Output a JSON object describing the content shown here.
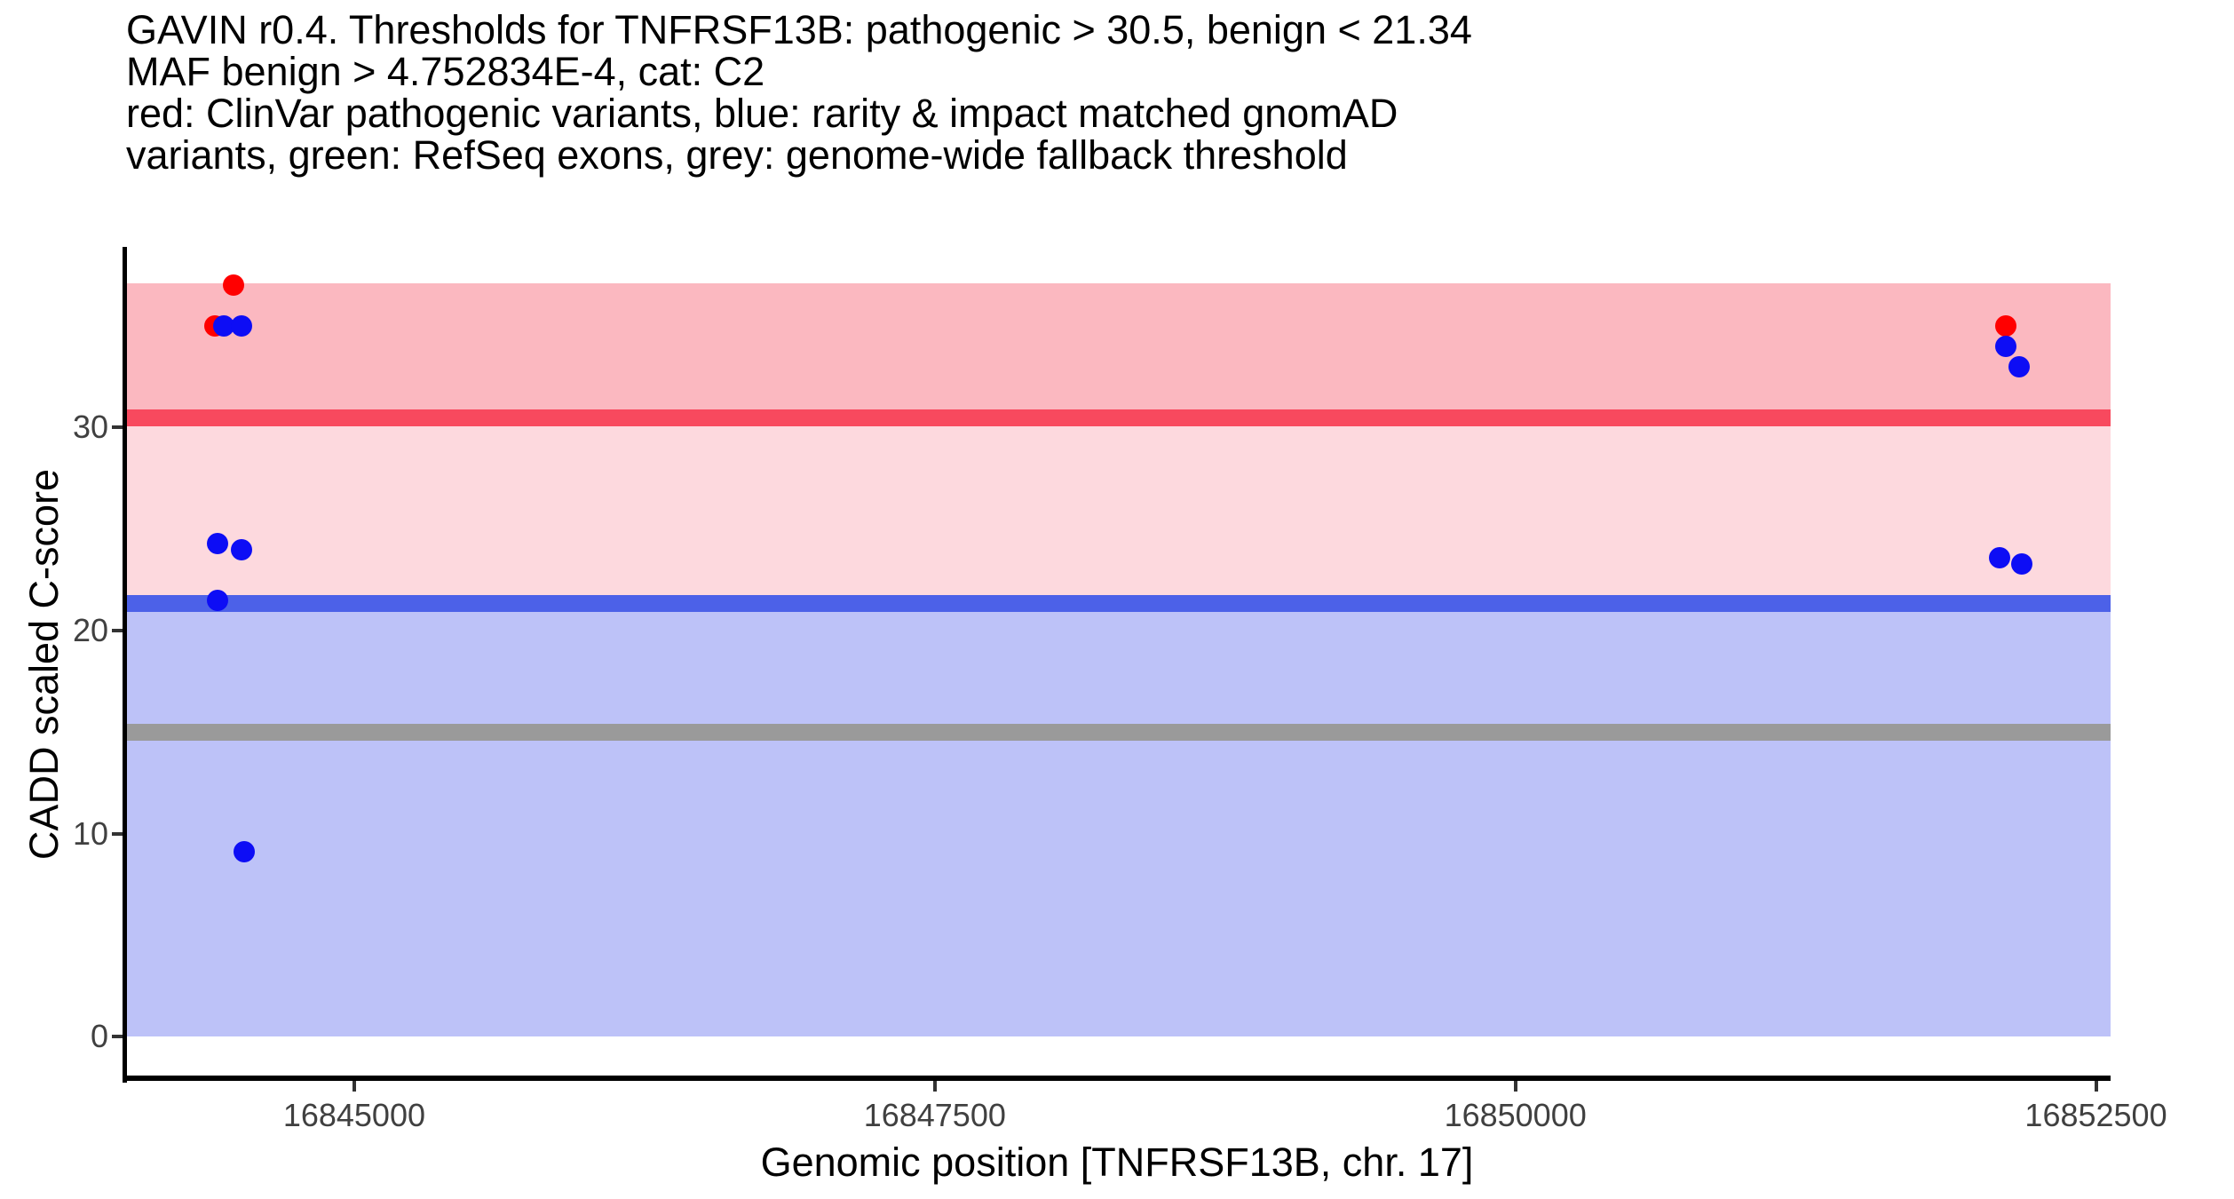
{
  "title": {
    "lines": [
      "GAVIN r0.4. Thresholds for TNFRSF13B: pathogenic > 30.5, benign < 21.34",
      "MAF benign > 4.752834E-4, cat: C2",
      "red: ClinVar pathogenic variants, blue: rarity & impact matched gnomAD",
      "variants, green: RefSeq exons, grey: genome-wide fallback threshold"
    ]
  },
  "chart_data": {
    "type": "scatter",
    "title": "GAVIN r0.4. Thresholds for TNFRSF13B: pathogenic > 30.5, benign < 21.34 MAF benign > 4.752834E-4, cat: C2",
    "subtitle": "red: ClinVar pathogenic variants, blue: rarity & impact matched gnomAD variants, green: RefSeq exons, grey: genome-wide fallback threshold",
    "xlabel": "Genomic position [TNFRSF13B, chr. 17]",
    "ylabel": "CADD scaled C-score",
    "gene": "TNFRSF13B",
    "chromosome": "17",
    "gavin_version": "r0.4",
    "category": "C2",
    "maf_benign": "4.752834E-4",
    "xlim": [
      16844010,
      16852563
    ],
    "ylim": [
      -2,
      38.9
    ],
    "grid": false,
    "legend_position": "none",
    "x_axis": {
      "ticks": [
        {
          "value": 16845000,
          "label": "16845000"
        },
        {
          "value": 16847500,
          "label": "16847500"
        },
        {
          "value": 16850000,
          "label": "16850000"
        },
        {
          "value": 16852500,
          "label": "16852500"
        }
      ]
    },
    "y_axis": {
      "ticks": [
        {
          "value": 0,
          "label": "0"
        },
        {
          "value": 10,
          "label": "10"
        },
        {
          "value": 20,
          "label": "20"
        },
        {
          "value": 30,
          "label": "30"
        }
      ]
    },
    "bands": [
      {
        "name": "pathogenic-zone-band",
        "from": 30.5,
        "to": 37.1,
        "color": "#fbb8c0"
      },
      {
        "name": "intermediate-zone-band",
        "from": 21.34,
        "to": 30.5,
        "color": "#fdd9de"
      },
      {
        "name": "benign-zone-band",
        "from": 0,
        "to": 21.34,
        "color": "#bdc2f8"
      }
    ],
    "thresholds": [
      {
        "name": "pathogenic-threshold-line",
        "label": "pathogenic > 30.5",
        "value": 30.5,
        "color": "#f8495e"
      },
      {
        "name": "benign-threshold-line",
        "label": "benign < 21.34",
        "value": 21.34,
        "color": "#4c61e8"
      },
      {
        "name": "genome-wide-fallback-threshold-line",
        "label": "genome-wide fallback threshold",
        "value": 15,
        "color": "#9a9a9a"
      }
    ],
    "series": [
      {
        "name": "ClinVar pathogenic variants",
        "color": "#ff0000",
        "points": [
          {
            "x": 16844480,
            "y": 37.0
          },
          {
            "x": 16844400,
            "y": 35.0
          },
          {
            "x": 16852110,
            "y": 35.0
          }
        ]
      },
      {
        "name": "rarity & impact matched gnomAD variants",
        "color": "#0d0df5",
        "points": [
          {
            "x": 16844440,
            "y": 35.0
          },
          {
            "x": 16844515,
            "y": 35.0
          },
          {
            "x": 16844410,
            "y": 24.3
          },
          {
            "x": 16844515,
            "y": 24.0
          },
          {
            "x": 16844410,
            "y": 21.5
          },
          {
            "x": 16844525,
            "y": 9.1
          },
          {
            "x": 16852110,
            "y": 34.0
          },
          {
            "x": 16852170,
            "y": 33.0
          },
          {
            "x": 16852085,
            "y": 23.6
          },
          {
            "x": 16852180,
            "y": 23.3
          }
        ]
      }
    ],
    "axis_colors": {
      "axis_line": "#000000",
      "tick_mark": "#333333",
      "tick_label": "#404040"
    }
  }
}
